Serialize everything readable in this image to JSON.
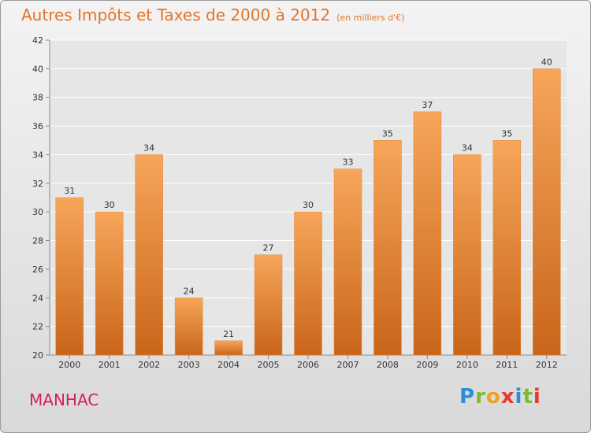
{
  "title": "Autres Impôts et Taxes de 2000 à 2012",
  "subtitle": "(en milliers d'€)",
  "commune": "MANHAC",
  "logo": {
    "letters": [
      {
        "char": "P",
        "color": "#2b8fd6"
      },
      {
        "char": "r",
        "color": "#7dbb2e"
      },
      {
        "char": "o",
        "color": "#f2a023"
      },
      {
        "char": "x",
        "color": "#e53a2e"
      },
      {
        "char": "i",
        "color": "#2b8fd6"
      },
      {
        "char": "t",
        "color": "#7dbb2e"
      },
      {
        "char": "i",
        "color": "#e53a2e"
      }
    ]
  },
  "colors": {
    "bar_top": "#f6a65a",
    "bar_bottom": "#c9651a",
    "grid": "#ffffff",
    "axis": "#8a8a8a"
  },
  "chart_data": {
    "type": "bar",
    "title": "Autres Impôts et Taxes de 2000 à 2012",
    "subtitle": "(en milliers d'€)",
    "categories": [
      "2000",
      "2001",
      "2002",
      "2003",
      "2004",
      "2005",
      "2006",
      "2007",
      "2008",
      "2009",
      "2010",
      "2011",
      "2012"
    ],
    "values": [
      31,
      30,
      34,
      24,
      21,
      27,
      30,
      33,
      35,
      37,
      34,
      35,
      40
    ],
    "ylim": [
      20,
      42
    ],
    "yticks": [
      20,
      22,
      24,
      26,
      28,
      30,
      32,
      34,
      36,
      38,
      40,
      42
    ],
    "grid": true,
    "data_labels": true
  }
}
